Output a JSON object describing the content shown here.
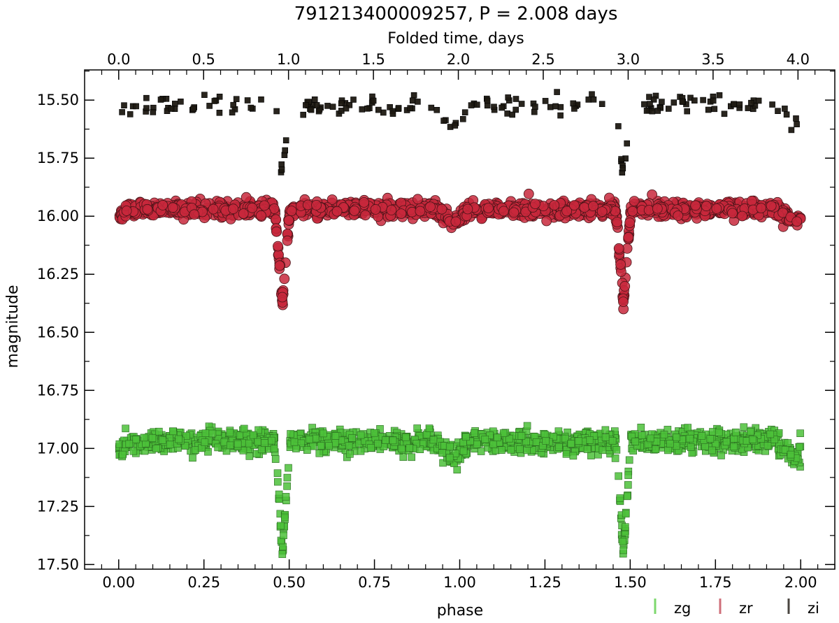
{
  "chart_data": {
    "type": "scatter",
    "title": "791213400009257, P = 2.008 days",
    "xlabel": "phase",
    "ylabel": "magnitude",
    "secondary_xlabel": "Folded time, days",
    "period_days": 2.008,
    "xlim": [
      -0.1,
      2.1
    ],
    "ylim": [
      17.52,
      15.37
    ],
    "y_inverted": true,
    "x_ticks": [
      0.0,
      0.25,
      0.5,
      0.75,
      1.0,
      1.25,
      1.5,
      1.75,
      2.0
    ],
    "x_tick_labels": [
      "0.00",
      "0.25",
      "0.50",
      "0.75",
      "1.00",
      "1.25",
      "1.50",
      "1.75",
      "2.00"
    ],
    "y_ticks": [
      15.5,
      15.75,
      16.0,
      16.25,
      16.5,
      16.75,
      17.0,
      17.25,
      17.5
    ],
    "y_tick_labels": [
      "15.50",
      "15.75",
      "16.00",
      "16.25",
      "16.50",
      "16.75",
      "17.00",
      "17.25",
      "17.50"
    ],
    "top_ticks": [
      0.0,
      0.5,
      1.0,
      1.5,
      2.0,
      2.5,
      3.0,
      3.5,
      4.0
    ],
    "top_tick_labels": [
      "0.0",
      "0.5",
      "1.0",
      "1.5",
      "2.0",
      "2.5",
      "3.0",
      "3.5",
      "4.0"
    ],
    "legend": {
      "placement": "below-right",
      "entries": [
        "zg",
        "zr",
        "zi"
      ]
    },
    "grid": false,
    "series": [
      {
        "name": "zg",
        "color": "#4cc13a",
        "marker": "square",
        "baseline": 16.97,
        "out_of_eclipse_scatter": 0.03,
        "primary_eclipse_phase": 0.48,
        "primary_eclipse_depth_mag": 17.45,
        "secondary_eclipse_phase": 0.98,
        "secondary_eclipse_depth_mag": 17.04
      },
      {
        "name": "zr",
        "color": "#c8283c",
        "marker": "circle",
        "baseline": 15.97,
        "out_of_eclipse_scatter": 0.02,
        "primary_eclipse_phase": 0.48,
        "primary_eclipse_depth_mag": 16.37,
        "secondary_eclipse_phase": 0.98,
        "secondary_eclipse_depth_mag": 16.03
      },
      {
        "name": "zi",
        "color": "#1e1912",
        "marker": "square",
        "baseline": 15.52,
        "out_of_eclipse_scatter": 0.03,
        "primary_eclipse_phase": 0.48,
        "primary_eclipse_depth_mag": 15.83,
        "secondary_eclipse_phase": 0.98,
        "secondary_eclipse_depth_mag": 15.62
      }
    ]
  }
}
